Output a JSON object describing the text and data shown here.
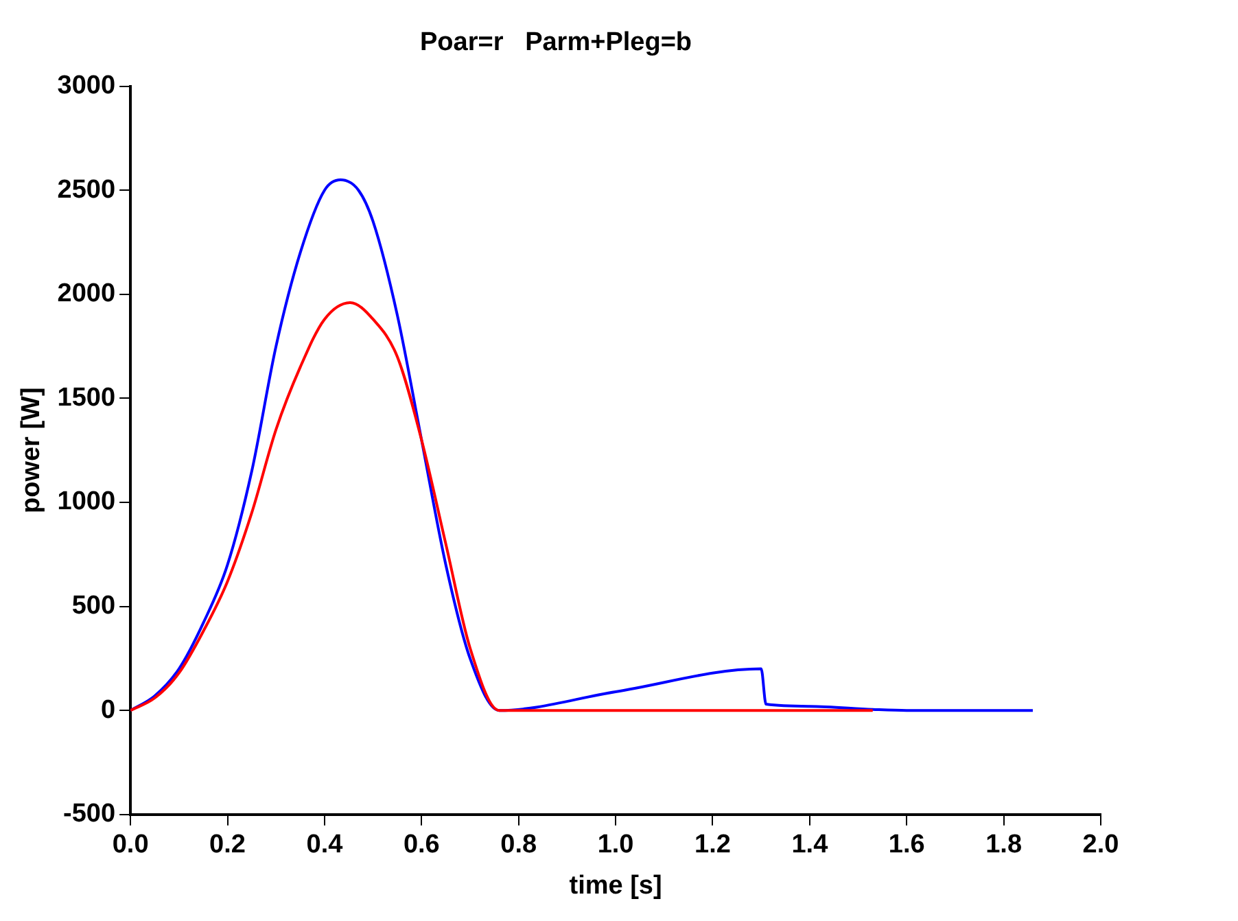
{
  "chart_data": {
    "type": "line",
    "title": "Poar=r   Parm+Pleg=b",
    "xlabel": "time [s]",
    "ylabel": "power [W]",
    "xlim": [
      0,
      2
    ],
    "xticks": [
      {
        "value": 0,
        "label": "0.0"
      },
      {
        "value": 0.2,
        "label": "0.2"
      },
      {
        "value": 0.4,
        "label": "0.4"
      },
      {
        "value": 0.6,
        "label": "0.6"
      },
      {
        "value": 0.8,
        "label": "0.8"
      },
      {
        "value": 1,
        "label": "1.0"
      },
      {
        "value": 1.2,
        "label": "1.2"
      },
      {
        "value": 1.4,
        "label": "1.4"
      },
      {
        "value": 1.6,
        "label": "1.6"
      },
      {
        "value": 1.8,
        "label": "1.8"
      },
      {
        "value": 2,
        "label": "2.0"
      }
    ],
    "ylim": [
      -500,
      3000
    ],
    "yticks": [
      -500,
      0,
      500,
      1000,
      1500,
      2000,
      2500,
      3000
    ],
    "grid": false,
    "legend": false,
    "marker": "none",
    "line_style": "solid",
    "series": [
      {
        "color": "#ff0000",
        "x": [
          0,
          0.05,
          0.1,
          0.15,
          0.2,
          0.25,
          0.3,
          0.35,
          0.4,
          0.453,
          0.5,
          0.55,
          0.6,
          0.65,
          0.7,
          0.76,
          1.0,
          1.3,
          1.53
        ],
        "values": [
          0,
          60,
          180,
          380,
          620,
          950,
          1350,
          1650,
          1880,
          1960,
          1880,
          1700,
          1300,
          800,
          300,
          0,
          0,
          0,
          0
        ]
      },
      {
        "color": "#0000ff",
        "x": [
          0,
          0.05,
          0.1,
          0.15,
          0.2,
          0.25,
          0.3,
          0.35,
          0.4,
          0.433,
          0.47,
          0.5,
          0.55,
          0.6,
          0.65,
          0.7,
          0.76,
          1.0,
          1.3,
          1.31,
          1.4,
          1.53,
          1.6,
          1.86
        ],
        "values": [
          0,
          70,
          200,
          420,
          700,
          1150,
          1750,
          2200,
          2500,
          2550,
          2500,
          2350,
          1900,
          1300,
          700,
          250,
          0,
          90,
          200,
          30,
          20,
          5,
          0,
          0
        ]
      }
    ]
  }
}
